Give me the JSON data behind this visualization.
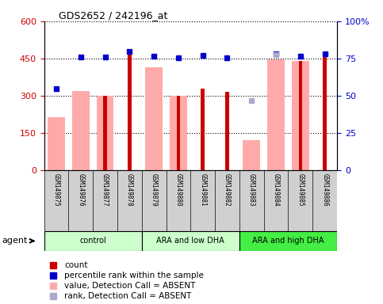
{
  "title": "GDS2652 / 242196_at",
  "samples": [
    "GSM149875",
    "GSM149876",
    "GSM149877",
    "GSM149878",
    "GSM149879",
    "GSM149880",
    "GSM149881",
    "GSM149882",
    "GSM149883",
    "GSM149884",
    "GSM149885",
    "GSM149886"
  ],
  "red_bars": [
    0,
    0,
    300,
    470,
    0,
    300,
    330,
    315,
    0,
    0,
    440,
    460
  ],
  "pink_bars": [
    215,
    320,
    300,
    0,
    415,
    300,
    0,
    0,
    120,
    445,
    440,
    0
  ],
  "blue_squares_y": [
    330,
    455,
    455,
    480,
    460,
    453,
    463,
    452,
    0,
    470,
    460,
    470
  ],
  "blue_squares_present": [
    true,
    true,
    true,
    true,
    true,
    true,
    true,
    true,
    false,
    true,
    true,
    true
  ],
  "light_blue_squares_y": [
    0,
    0,
    0,
    0,
    0,
    0,
    0,
    0,
    280,
    465,
    0,
    0
  ],
  "light_blue_squares_present": [
    false,
    false,
    false,
    false,
    false,
    false,
    false,
    false,
    true,
    true,
    false,
    false
  ],
  "ylim_left": [
    0,
    600
  ],
  "ylim_right": [
    0,
    100
  ],
  "yticks_left": [
    0,
    150,
    300,
    450,
    600
  ],
  "ytick_labels_left": [
    "0",
    "150",
    "300",
    "450",
    "600"
  ],
  "yticks_right": [
    0,
    25,
    50,
    75,
    100
  ],
  "ytick_labels_right": [
    "0",
    "25",
    "50",
    "75",
    "100%"
  ],
  "groups": [
    {
      "label": "control",
      "start": 0,
      "end": 3,
      "color": "#ccffcc"
    },
    {
      "label": "ARA and low DHA",
      "start": 4,
      "end": 7,
      "color": "#ccffcc"
    },
    {
      "label": "ARA and high DHA",
      "start": 8,
      "end": 11,
      "color": "#44ee44"
    }
  ],
  "agent_label": "agent",
  "red_color": "#cc0000",
  "pink_color": "#ffaaaa",
  "blue_color": "#0000cc",
  "light_blue_color": "#aaaacc",
  "bg_color": "#d0d0d0",
  "title_color": "#000000",
  "left_axis_color": "#cc0000",
  "right_axis_color": "#0000cc"
}
